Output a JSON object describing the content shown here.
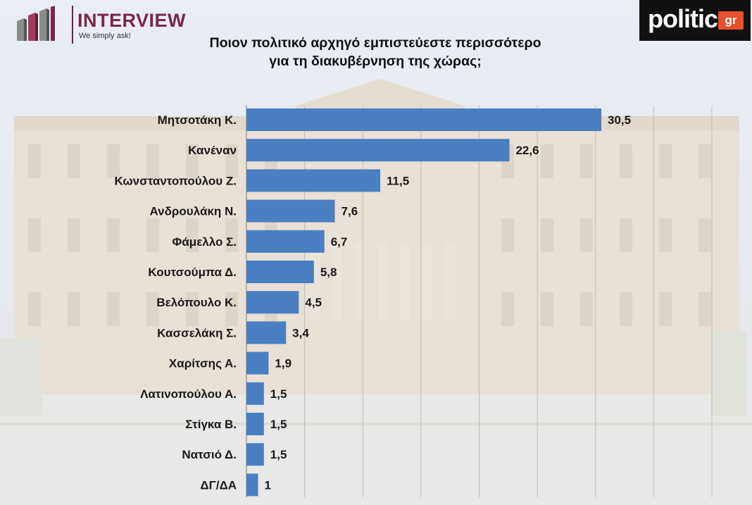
{
  "header": {
    "brand_name": "INTERVIEW",
    "brand_tagline": "We simply ask!",
    "partner_name": "politic",
    "partner_tag": "gr"
  },
  "colors": {
    "bar": "#4a7fc1",
    "brand": "#7a2748",
    "partner_bg": "#111111",
    "partner_accent": "#e8502a"
  },
  "chart_data": {
    "type": "bar",
    "orientation": "horizontal",
    "title_lines": [
      "Ποιον πολιτικό αρχηγό εμπιστεύεστε περισσότερο",
      "για τη διακυβέρνηση της χώρας;"
    ],
    "categories": [
      "Μητσοτάκη Κ.",
      "Κανέναν",
      "Κωνσταντοπούλου Ζ.",
      "Ανδρουλάκη Ν.",
      "Φάμελλο Σ.",
      "Κουτσούμπα Δ.",
      "Βελόπουλο Κ.",
      "Κασσελάκη Σ.",
      "Χαρίτσης Α.",
      "Λατινοπούλου Α.",
      "Στίγκα Β.",
      "Νατσιό Δ.",
      "ΔΓ/ΔΑ"
    ],
    "values": [
      30.5,
      22.6,
      11.5,
      7.6,
      6.7,
      5.8,
      4.5,
      3.4,
      1.9,
      1.5,
      1.5,
      1.5,
      1
    ],
    "value_labels": [
      "30,5",
      "22,6",
      "11,5",
      "7,6",
      "6,7",
      "5,8",
      "4,5",
      "3,4",
      "1,9",
      "1,5",
      "1,5",
      "1,5",
      "1"
    ],
    "xlim": [
      0,
      40
    ],
    "grid": true,
    "legend": "none"
  }
}
